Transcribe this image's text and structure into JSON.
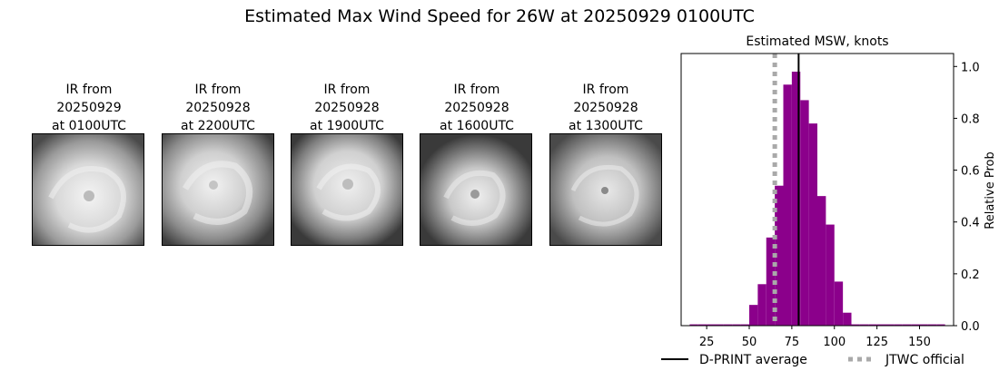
{
  "title": "Estimated Max Wind Speed for 26W at 20250929 0100UTC",
  "ir_panels": [
    {
      "label": "IR from\n20250929\nat 0100UTC"
    },
    {
      "label": "IR from\n20250928\nat 2200UTC"
    },
    {
      "label": "IR from\n20250928\nat 1900UTC"
    },
    {
      "label": "IR from\n20250928\nat 1600UTC"
    },
    {
      "label": "IR from\n20250928\nat 1300UTC"
    }
  ],
  "chart_data": {
    "type": "bar",
    "title": "Estimated MSW, knots",
    "ylabel": "Relative Prob",
    "xlim": [
      10,
      170
    ],
    "ylim": [
      0,
      1.05
    ],
    "xticks": [
      25,
      50,
      75,
      100,
      125,
      150
    ],
    "yticks": [
      0.0,
      0.2,
      0.4,
      0.6,
      0.8,
      1.0
    ],
    "bin_width": 5,
    "bins": [
      {
        "x0": 15,
        "value": 0.005
      },
      {
        "x0": 20,
        "value": 0.005
      },
      {
        "x0": 25,
        "value": 0.005
      },
      {
        "x0": 30,
        "value": 0.005
      },
      {
        "x0": 35,
        "value": 0.005
      },
      {
        "x0": 40,
        "value": 0.005
      },
      {
        "x0": 45,
        "value": 0.005
      },
      {
        "x0": 50,
        "value": 0.08
      },
      {
        "x0": 55,
        "value": 0.16
      },
      {
        "x0": 60,
        "value": 0.34
      },
      {
        "x0": 65,
        "value": 0.54
      },
      {
        "x0": 70,
        "value": 0.93
      },
      {
        "x0": 75,
        "value": 0.98
      },
      {
        "x0": 80,
        "value": 0.87
      },
      {
        "x0": 85,
        "value": 0.78
      },
      {
        "x0": 90,
        "value": 0.5
      },
      {
        "x0": 95,
        "value": 0.39
      },
      {
        "x0": 100,
        "value": 0.17
      },
      {
        "x0": 105,
        "value": 0.05
      },
      {
        "x0": 110,
        "value": 0.005
      },
      {
        "x0": 115,
        "value": 0.005
      },
      {
        "x0": 120,
        "value": 0.005
      },
      {
        "x0": 125,
        "value": 0.005
      },
      {
        "x0": 130,
        "value": 0.005
      },
      {
        "x0": 135,
        "value": 0.005
      },
      {
        "x0": 140,
        "value": 0.005
      },
      {
        "x0": 145,
        "value": 0.005
      },
      {
        "x0": 150,
        "value": 0.005
      },
      {
        "x0": 155,
        "value": 0.005
      },
      {
        "x0": 160,
        "value": 0.005
      }
    ],
    "bar_color": "#8b008b",
    "dprint_average": 79,
    "jtwc_official": 65,
    "dprint_color": "#000000",
    "jtwc_color": "#a9a9a9",
    "legend": [
      {
        "label": "D-PRINT average",
        "style": "solid"
      },
      {
        "label": "JTWC official",
        "style": "dotted"
      }
    ],
    "legend_position": "bottom"
  }
}
